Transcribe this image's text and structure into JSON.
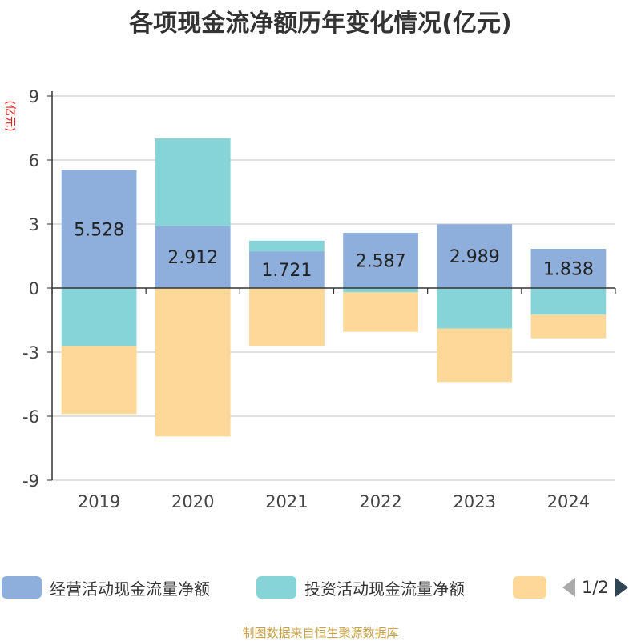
{
  "chart_data": {
    "type": "bar",
    "stacked": true,
    "title": "各项现金流净额历年变化情况(亿元)",
    "ylabel": "(亿元)",
    "categories": [
      "2019",
      "2020",
      "2021",
      "2022",
      "2023",
      "2024"
    ],
    "ylim": [
      -9,
      9
    ],
    "yticks": [
      "9",
      "6",
      "3",
      "0",
      "-3",
      "-6",
      "-9"
    ],
    "grid": true,
    "series": [
      {
        "name": "经营活动现金流量净额",
        "color": "#8eaedb",
        "values": [
          5.528,
          2.912,
          1.721,
          2.587,
          2.989,
          1.838
        ],
        "labels": [
          "5.528",
          "2.912",
          "1.721",
          "2.587",
          "2.989",
          "1.838"
        ]
      },
      {
        "name": "投资活动现金流量净额",
        "color": "#87d4d8",
        "values": [
          -2.7,
          4.1,
          0.5,
          -0.2,
          -1.9,
          -1.25
        ]
      },
      {
        "name": "",
        "color": "#fed898",
        "values": [
          -3.2,
          -6.95,
          -2.7,
          -1.85,
          -2.5,
          -1.1
        ]
      }
    ],
    "legend_position": "bottom"
  },
  "legend": {
    "pager_text": "1/2"
  },
  "source_note": "制图数据来自恒生聚源数据库"
}
